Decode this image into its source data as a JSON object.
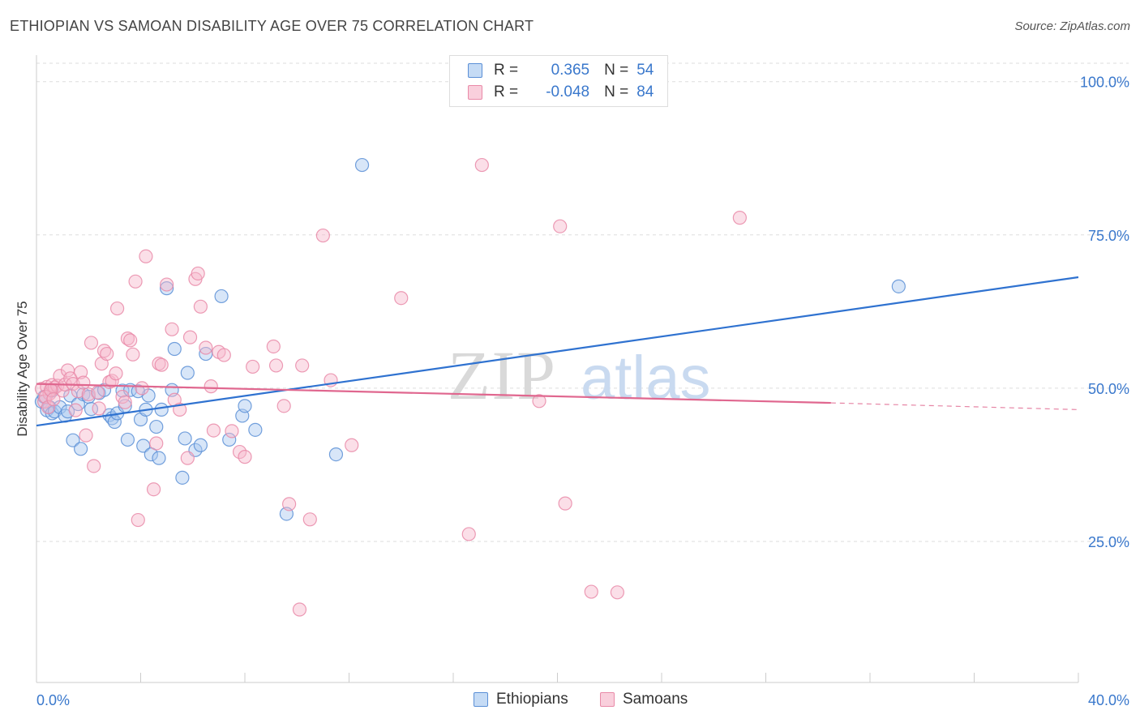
{
  "title": "ETHIOPIAN VS SAMOAN DISABILITY AGE OVER 75 CORRELATION CHART",
  "source": "Source: ZipAtlas.com",
  "watermark": "ZIPatlas",
  "legend_stats": [
    {
      "r_label": "R =",
      "r_value": "0.365",
      "n_label": "N =",
      "n_value": "54"
    },
    {
      "r_label": "R =",
      "r_value": "-0.048",
      "n_label": "N =",
      "n_value": "84"
    }
  ],
  "colors": {
    "ethiopians_fill": "#a9c8f0",
    "ethiopians_stroke": "#5b8fd6",
    "ethiopians_line": "#2f72d0",
    "samoans_fill": "#f6b8cc",
    "samoans_stroke": "#e98aa8",
    "samoans_line": "#e0678f",
    "axis_text": "#3a78cc",
    "grid": "#dddddd"
  },
  "chart_data": {
    "type": "scatter",
    "title": "ETHIOPIAN VS SAMOAN DISABILITY AGE OVER 75 CORRELATION CHART",
    "xlabel": "",
    "ylabel": "Disability Age Over 75",
    "xlim": [
      0,
      40
    ],
    "ylim": [
      2.0,
      103.0
    ],
    "x_tick_labels": [
      "0.0%",
      "40.0%"
    ],
    "y_ticks": [
      25,
      50,
      75,
      100
    ],
    "y_tick_labels": [
      "25.0%",
      "50.0%",
      "75.0%",
      "100.0%"
    ],
    "grid": true,
    "legend_position": "bottom",
    "series": [
      {
        "name": "Ethiopians",
        "points": [
          [
            0.2,
            47.8
          ],
          [
            0.3,
            48.6
          ],
          [
            0.4,
            46.4
          ],
          [
            0.5,
            46.9
          ],
          [
            0.6,
            45.9
          ],
          [
            0.7,
            46.2
          ],
          [
            0.9,
            46.9
          ],
          [
            1.1,
            45.5
          ],
          [
            1.3,
            48.8
          ],
          [
            1.4,
            41.5
          ],
          [
            1.6,
            47.4
          ],
          [
            1.7,
            40.1
          ],
          [
            1.8,
            49.0
          ],
          [
            2.0,
            48.6
          ],
          [
            2.1,
            46.6
          ],
          [
            2.4,
            49.2
          ],
          [
            2.6,
            49.7
          ],
          [
            2.8,
            45.6
          ],
          [
            2.9,
            45.1
          ],
          [
            3.0,
            44.5
          ],
          [
            3.1,
            45.9
          ],
          [
            3.3,
            49.6
          ],
          [
            3.4,
            47.1
          ],
          [
            3.6,
            49.7
          ],
          [
            3.5,
            41.6
          ],
          [
            4.0,
            44.9
          ],
          [
            4.1,
            40.6
          ],
          [
            4.2,
            46.5
          ],
          [
            4.3,
            48.8
          ],
          [
            4.4,
            39.2
          ],
          [
            4.6,
            43.7
          ],
          [
            4.7,
            38.6
          ],
          [
            4.8,
            46.5
          ],
          [
            5.0,
            66.3
          ],
          [
            5.2,
            49.7
          ],
          [
            5.3,
            56.4
          ],
          [
            5.6,
            35.4
          ],
          [
            5.7,
            41.8
          ],
          [
            5.8,
            52.5
          ],
          [
            6.1,
            39.9
          ],
          [
            6.3,
            40.7
          ],
          [
            6.5,
            55.6
          ],
          [
            7.1,
            65.0
          ],
          [
            7.4,
            41.6
          ],
          [
            7.9,
            45.5
          ],
          [
            8.0,
            47.1
          ],
          [
            8.4,
            43.2
          ],
          [
            9.6,
            29.5
          ],
          [
            11.5,
            39.2
          ],
          [
            12.5,
            86.4
          ],
          [
            33.1,
            66.6
          ],
          [
            0.6,
            49.6
          ],
          [
            1.2,
            46.2
          ],
          [
            3.9,
            49.5
          ]
        ]
      },
      {
        "name": "Samoans",
        "points": [
          [
            0.2,
            49.9
          ],
          [
            0.3,
            47.8
          ],
          [
            0.4,
            50.2
          ],
          [
            0.5,
            49.1
          ],
          [
            0.6,
            50.5
          ],
          [
            0.7,
            50.1
          ],
          [
            0.8,
            50.4
          ],
          [
            0.9,
            52.0
          ],
          [
            1.0,
            49.6
          ],
          [
            1.1,
            50.6
          ],
          [
            1.2,
            52.9
          ],
          [
            1.3,
            51.6
          ],
          [
            1.4,
            50.7
          ],
          [
            1.5,
            46.4
          ],
          [
            1.6,
            49.5
          ],
          [
            1.7,
            52.6
          ],
          [
            1.8,
            50.9
          ],
          [
            1.9,
            42.3
          ],
          [
            2.0,
            49.0
          ],
          [
            2.1,
            57.4
          ],
          [
            2.2,
            37.3
          ],
          [
            2.4,
            46.7
          ],
          [
            2.5,
            54.0
          ],
          [
            2.6,
            56.1
          ],
          [
            2.7,
            55.6
          ],
          [
            2.8,
            51.0
          ],
          [
            2.9,
            51.2
          ],
          [
            3.1,
            63.0
          ],
          [
            3.3,
            48.6
          ],
          [
            3.4,
            47.7
          ],
          [
            3.5,
            58.1
          ],
          [
            3.6,
            57.8
          ],
          [
            3.7,
            55.5
          ],
          [
            3.8,
            67.4
          ],
          [
            3.9,
            28.5
          ],
          [
            4.2,
            71.5
          ],
          [
            4.5,
            33.5
          ],
          [
            4.6,
            41.0
          ],
          [
            4.7,
            54.0
          ],
          [
            4.8,
            53.8
          ],
          [
            5.0,
            66.9
          ],
          [
            5.2,
            59.6
          ],
          [
            5.3,
            48.1
          ],
          [
            5.5,
            46.5
          ],
          [
            5.8,
            38.6
          ],
          [
            5.9,
            58.3
          ],
          [
            6.1,
            67.8
          ],
          [
            6.2,
            68.7
          ],
          [
            6.3,
            63.3
          ],
          [
            6.5,
            56.6
          ],
          [
            6.7,
            50.3
          ],
          [
            6.8,
            43.1
          ],
          [
            7.0,
            55.9
          ],
          [
            7.2,
            55.4
          ],
          [
            7.5,
            43.0
          ],
          [
            7.8,
            39.6
          ],
          [
            8.0,
            38.8
          ],
          [
            8.3,
            53.5
          ],
          [
            9.1,
            56.8
          ],
          [
            9.2,
            53.7
          ],
          [
            9.5,
            47.1
          ],
          [
            9.7,
            31.1
          ],
          [
            10.1,
            13.9
          ],
          [
            10.2,
            53.7
          ],
          [
            10.5,
            28.6
          ],
          [
            11.0,
            74.9
          ],
          [
            11.3,
            51.3
          ],
          [
            12.1,
            40.7
          ],
          [
            14.0,
            64.7
          ],
          [
            16.6,
            26.2
          ],
          [
            17.1,
            86.4
          ],
          [
            19.3,
            47.9
          ],
          [
            20.1,
            76.4
          ],
          [
            20.3,
            31.2
          ],
          [
            21.3,
            16.8
          ],
          [
            22.3,
            16.7
          ],
          [
            27.0,
            77.8
          ],
          [
            0.35,
            48.6
          ],
          [
            0.45,
            46.9
          ],
          [
            0.55,
            49.7
          ],
          [
            0.65,
            48.2
          ],
          [
            2.35,
            49.3
          ],
          [
            3.05,
            52.4
          ],
          [
            4.05,
            50.0
          ]
        ]
      }
    ],
    "trend_lines": [
      {
        "series": "Ethiopians",
        "x": [
          0,
          40
        ],
        "y": [
          43.9,
          68.1
        ]
      },
      {
        "series": "Samoans",
        "x": [
          0,
          30.5
        ],
        "y": [
          50.7,
          47.6
        ],
        "dashed_extension": {
          "x": [
            30.5,
            40
          ],
          "y": [
            47.6,
            46.5
          ]
        }
      }
    ]
  },
  "bottom_legend": [
    "Ethiopians",
    "Samoans"
  ]
}
